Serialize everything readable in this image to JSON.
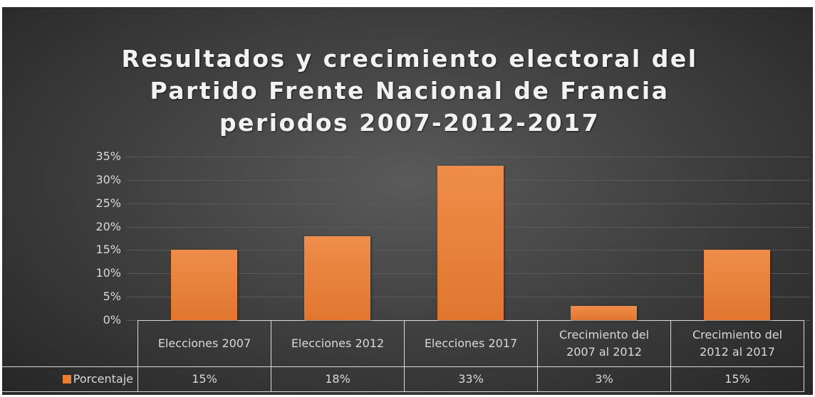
{
  "chart_data": {
    "type": "bar",
    "title": "Resultados y crecimiento electoral del Partido Frente Nacional de Francia periodos 2007-2012-2017",
    "categories": [
      "Elecciones 2007",
      "Elecciones 2012",
      "Elecciones 2017",
      "Crecimiento del 2007 al 2012",
      "Crecimiento del 2012 al 2017"
    ],
    "series": [
      {
        "name": "Porcentaje",
        "color": "#ed7d31",
        "values": [
          15,
          18,
          33,
          3,
          15
        ],
        "value_labels": [
          "15%",
          "18%",
          "33%",
          "3%",
          "15%"
        ]
      }
    ],
    "ylim": [
      0,
      35
    ],
    "yticks": [
      {
        "value": 0,
        "label": "0%"
      },
      {
        "value": 5,
        "label": "5%"
      },
      {
        "value": 10,
        "label": "10%"
      },
      {
        "value": 15,
        "label": "15%"
      },
      {
        "value": 20,
        "label": "20%"
      },
      {
        "value": 25,
        "label": "25%"
      },
      {
        "value": 30,
        "label": "30%"
      },
      {
        "value": 35,
        "label": "35%"
      }
    ],
    "grid": true
  }
}
